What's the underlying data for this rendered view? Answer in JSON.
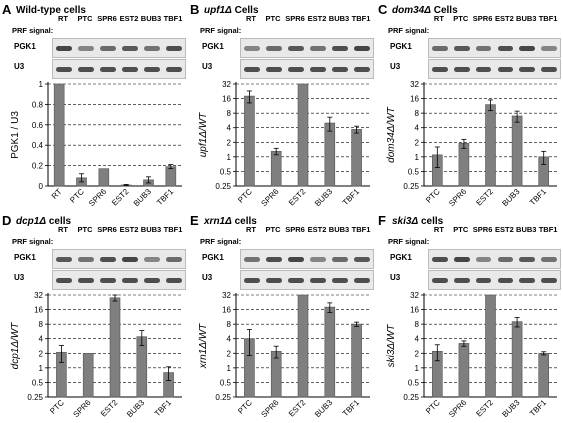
{
  "prf_label": "PRF signal:",
  "blot_labels": {
    "pgk1": "PGK1",
    "u3": "U3"
  },
  "colors": {
    "bar": "#7f7f7f",
    "axis": "#000000",
    "grid": "#000000"
  },
  "panels": [
    {
      "letter": "A",
      "title_pre": "Wild-type cells",
      "title_italic": "",
      "title_post": "",
      "lanes": [
        "RT",
        "PTC",
        "SPR6",
        "EST2",
        "BUB3",
        "TBF1"
      ],
      "chart_data": {
        "type": "bar",
        "scale": "linear",
        "categories": [
          "RT",
          "PTC",
          "SPR6",
          "EST2",
          "BUB3",
          "TBF1"
        ],
        "values": [
          1.0,
          0.08,
          0.17,
          0.01,
          0.06,
          0.19
        ],
        "errors": [
          0,
          0.04,
          0,
          0.005,
          0.03,
          0.02
        ],
        "ylabel": "PGK1 / U3",
        "ylim": [
          0,
          1
        ],
        "ticks": [
          "0",
          "0.2",
          "0.4",
          "0.6",
          "0.8",
          "1"
        ],
        "tick_values": [
          0,
          0.2,
          0.4,
          0.6,
          0.8,
          1.0
        ],
        "grid": true
      }
    },
    {
      "letter": "B",
      "title_pre": "",
      "title_italic": "upf1Δ",
      "title_post": " Cells",
      "lanes": [
        "RT",
        "PTC",
        "SPR6",
        "EST2",
        "BUB3",
        "TBF1"
      ],
      "chart_data": {
        "type": "bar",
        "scale": "log2",
        "categories": [
          "PTC",
          "SPR6",
          "EST2",
          "BUB3",
          "TBF1"
        ],
        "values": [
          18,
          1.3,
          32,
          5,
          3.7
        ],
        "errors": [
          5,
          0.2,
          0,
          1.6,
          0.6
        ],
        "ylabel": "upf1Δ/WT",
        "ylim": [
          0.25,
          32
        ],
        "ticks": [
          "32",
          "16",
          "8",
          "4",
          "2",
          "1",
          "0.5",
          "0.25"
        ],
        "tick_values": [
          32,
          16,
          8,
          4,
          2,
          1,
          0.5,
          0.25
        ],
        "grid": true
      }
    },
    {
      "letter": "C",
      "title_pre": "",
      "title_italic": "dom34Δ",
      "title_post": " Cells",
      "lanes": [
        "RT",
        "PTC",
        "SPR6",
        "EST2",
        "BUB3",
        "TBF1"
      ],
      "chart_data": {
        "type": "bar",
        "scale": "log2",
        "categories": [
          "PTC",
          "SPR6",
          "EST2",
          "BUB3",
          "TBF1"
        ],
        "values": [
          1.1,
          1.9,
          12,
          7,
          1.0
        ],
        "errors": [
          0.5,
          0.4,
          3,
          1.8,
          0.3
        ],
        "ylabel": "dom34Δ/WT",
        "ylim": [
          0.25,
          32
        ],
        "ticks": [
          "32",
          "16",
          "8",
          "4",
          "2",
          "1",
          "0.5",
          "0.25"
        ],
        "tick_values": [
          32,
          16,
          8,
          4,
          2,
          1,
          0.5,
          0.25
        ],
        "grid": true
      }
    },
    {
      "letter": "D",
      "title_pre": "",
      "title_italic": "dcp1Δ",
      "title_post": " cells",
      "lanes": [
        "RT",
        "PTC",
        "SPR6",
        "EST2",
        "BUB3",
        "TBF1"
      ],
      "chart_data": {
        "type": "bar",
        "scale": "log2",
        "categories": [
          "PTC",
          "SPR6",
          "EST2",
          "BUB3",
          "TBF1"
        ],
        "values": [
          2.1,
          2.0,
          28,
          4.4,
          0.8
        ],
        "errors": [
          0.8,
          0,
          4,
          1.5,
          0.25
        ],
        "ylabel": "dcp1Δ/WT",
        "ylim": [
          0.25,
          32
        ],
        "ticks": [
          "32",
          "16",
          "8",
          "4",
          "2",
          "1",
          "0.5",
          "0.25"
        ],
        "tick_values": [
          32,
          16,
          8,
          4,
          2,
          1,
          0.5,
          0.25
        ],
        "grid": true
      }
    },
    {
      "letter": "E",
      "title_pre": "",
      "title_italic": "xrn1Δ",
      "title_post": " cells",
      "lanes": [
        "RT",
        "PTC",
        "SPR6",
        "EST2",
        "BUB3",
        "TBF1"
      ],
      "chart_data": {
        "type": "bar",
        "scale": "log2",
        "categories": [
          "PTC",
          "SPR6",
          "EST2",
          "BUB3",
          "TBF1"
        ],
        "values": [
          4,
          2.2,
          32,
          18,
          8
        ],
        "errors": [
          2.2,
          0.6,
          0,
          4,
          0.8
        ],
        "ylabel": "xrn1Δ/WT",
        "ylim": [
          0.25,
          32
        ],
        "ticks": [
          "32",
          "16",
          "8",
          "4",
          "2",
          "1",
          "0.5",
          "0.25"
        ],
        "tick_values": [
          32,
          16,
          8,
          4,
          2,
          1,
          0.5,
          0.25
        ],
        "grid": true
      }
    },
    {
      "letter": "F",
      "title_pre": "",
      "title_italic": "ski3Δ",
      "title_post": " cells",
      "lanes": [
        "RT",
        "PTC",
        "SPR6",
        "EST2",
        "BUB3",
        "TBF1"
      ],
      "chart_data": {
        "type": "bar",
        "scale": "log2",
        "categories": [
          "PTC",
          "SPR6",
          "EST2",
          "BUB3",
          "TBF1"
        ],
        "values": [
          2.2,
          3.2,
          32,
          9,
          2.0
        ],
        "errors": [
          0.8,
          0.4,
          0,
          2,
          0.15
        ],
        "ylabel": "ski3Δ/WT",
        "ylim": [
          0.25,
          32
        ],
        "ticks": [
          "32",
          "16",
          "8",
          "4",
          "2",
          "1",
          "0.5",
          "0.25"
        ],
        "tick_values": [
          32,
          16,
          8,
          4,
          2,
          1,
          0.5,
          0.25
        ],
        "grid": true
      }
    }
  ]
}
